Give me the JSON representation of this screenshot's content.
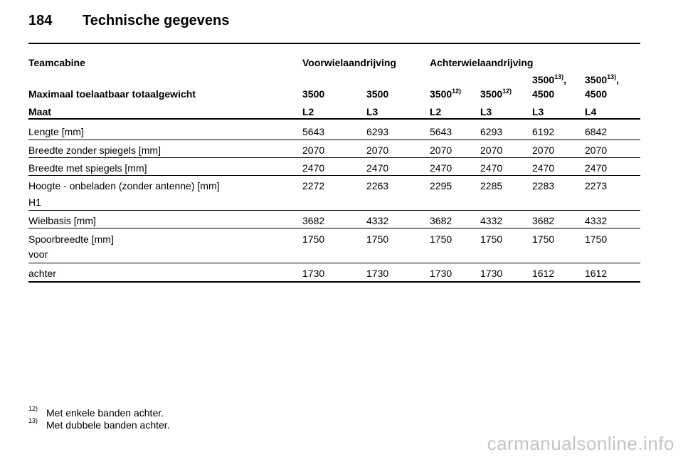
{
  "header": {
    "page_number": "184",
    "title": "Technische gegevens"
  },
  "table": {
    "group_row": {
      "label": "Teamcabine",
      "front": "Voorwielaandrijving",
      "rear": "Achterwielaandrijving"
    },
    "weight_row": {
      "label": "Maximaal toelaatbaar totaalgewicht",
      "values": [
        {
          "top": "",
          "main": "3500",
          "sup": ""
        },
        {
          "top": "",
          "main": "3500",
          "sup": ""
        },
        {
          "top": "",
          "main": "3500",
          "sup": "12)"
        },
        {
          "top": "",
          "main": "3500",
          "sup": "12)"
        },
        {
          "top_main": "3500",
          "top_sup": "13)",
          "top_suffix": ",",
          "main": "4500",
          "sup": ""
        },
        {
          "top_main": "3500",
          "top_sup": "13)",
          "top_suffix": ",",
          "main": "4500",
          "sup": ""
        }
      ]
    },
    "size_row": {
      "label": "Maat",
      "values": [
        "L2",
        "L3",
        "L2",
        "L3",
        "L3",
        "L4"
      ]
    },
    "rows": [
      {
        "label": "Lengte [mm]",
        "values": [
          "5643",
          "6293",
          "5643",
          "6293",
          "6192",
          "6842"
        ]
      },
      {
        "label": "Breedte zonder spiegels [mm]",
        "values": [
          "2070",
          "2070",
          "2070",
          "2070",
          "2070",
          "2070"
        ]
      },
      {
        "label": "Breedte met spiegels [mm]",
        "values": [
          "2470",
          "2470",
          "2470",
          "2470",
          "2470",
          "2470"
        ]
      },
      {
        "label": "Hoogte - onbeladen (zonder antenne) [mm]",
        "sublabel": "H1",
        "values": [
          "2272",
          "2263",
          "2295",
          "2285",
          "2283",
          "2273"
        ]
      },
      {
        "label": "Wielbasis [mm]",
        "values": [
          "3682",
          "4332",
          "3682",
          "4332",
          "3682",
          "4332"
        ]
      },
      {
        "label": "Spoorbreedte [mm]",
        "sublabel": "voor",
        "values": [
          "1750",
          "1750",
          "1750",
          "1750",
          "1750",
          "1750"
        ]
      },
      {
        "label": "achter",
        "values": [
          "1730",
          "1730",
          "1730",
          "1730",
          "1612",
          "1612"
        ]
      }
    ]
  },
  "footnotes": [
    {
      "mark": "12)",
      "text": "Met enkele banden achter."
    },
    {
      "mark": "13)",
      "text": "Met dubbele banden achter."
    }
  ],
  "watermark": "carmanualsonline.info"
}
